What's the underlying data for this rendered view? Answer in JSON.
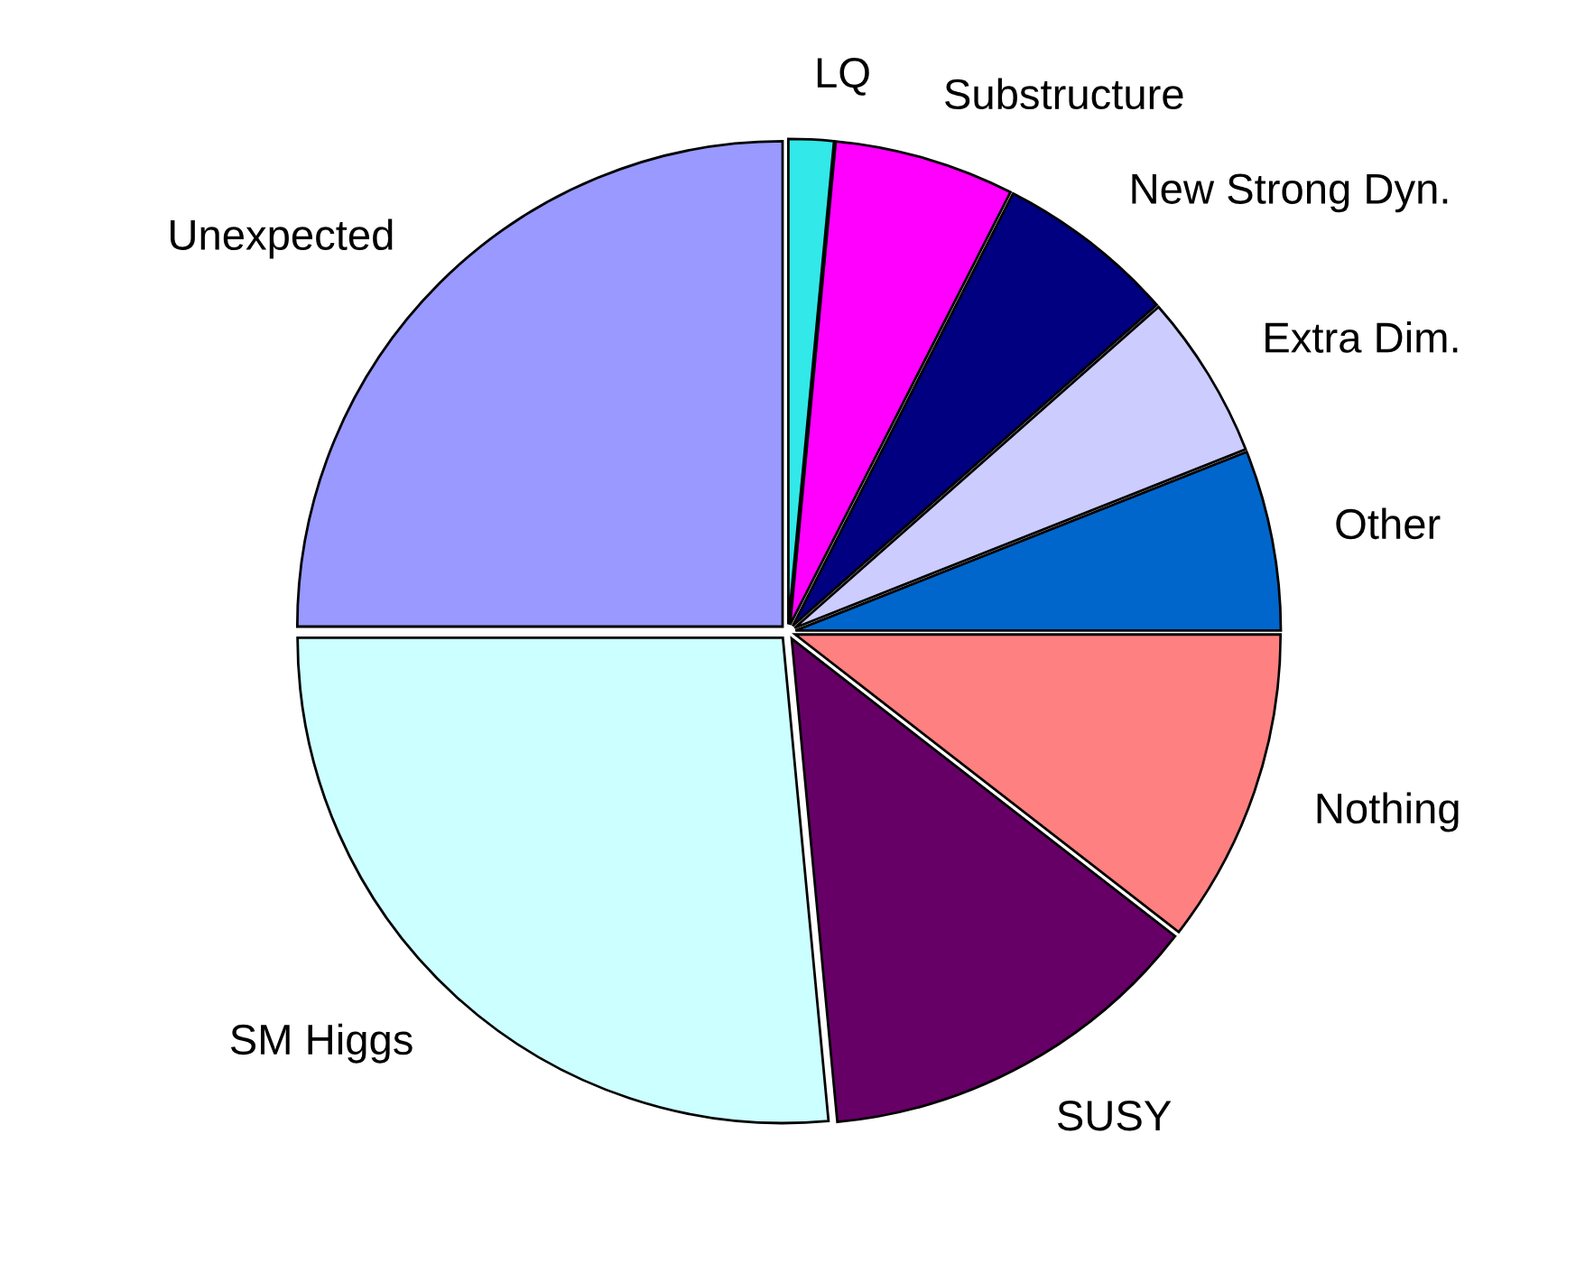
{
  "chart_data": {
    "type": "pie",
    "categories": [
      "LQ",
      "Substructure",
      "New Strong Dyn.",
      "Extra Dim.",
      "Other",
      "Nothing",
      "SUSY",
      "SM Higgs",
      "Unexpected"
    ],
    "values": [
      1.5,
      6,
      6,
      5.5,
      6,
      10.5,
      13,
      26.5,
      25
    ],
    "colors": [
      "#33e8e8",
      "#ff00ff",
      "#000080",
      "#ccccff",
      "#0066cc",
      "#ff8080",
      "#660066",
      "#ccffff",
      "#9999ff"
    ],
    "legend": false
  }
}
